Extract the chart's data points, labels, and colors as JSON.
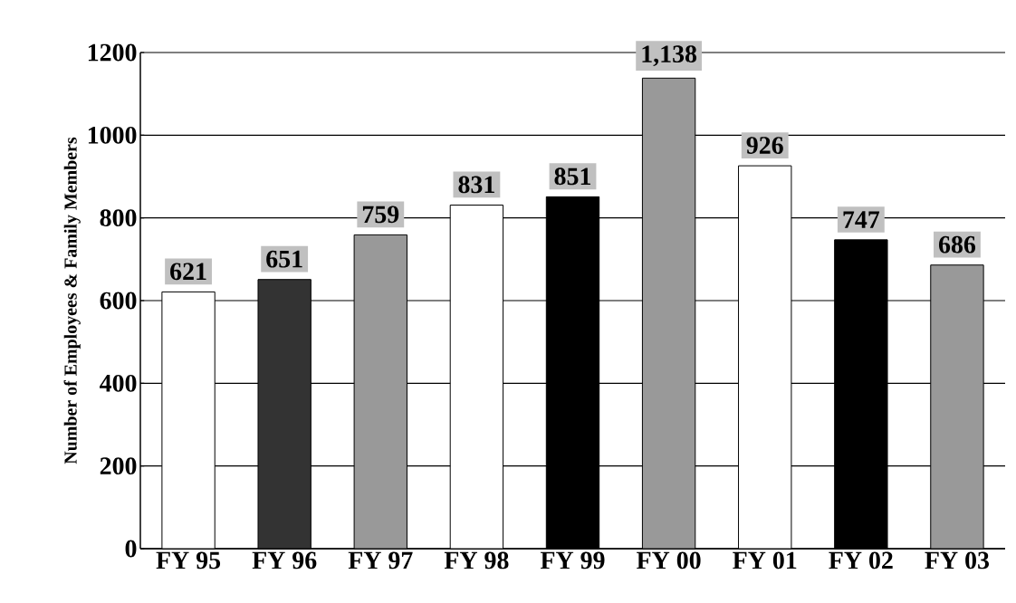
{
  "chart_data": {
    "type": "bar",
    "ylabel": "Number of Employees & Family Members",
    "categories": [
      "FY 95",
      "FY 96",
      "FY 97",
      "FY 98",
      "FY 99",
      "FY 00",
      "FY 01",
      "FY 02",
      "FY 03"
    ],
    "values": [
      621,
      651,
      759,
      831,
      851,
      1138,
      926,
      747,
      686
    ],
    "value_labels": [
      "621",
      "651",
      "759",
      "831",
      "851",
      "1,138",
      "926",
      "747",
      "686"
    ],
    "colors": [
      "#ffffff",
      "#333333",
      "#999999",
      "#ffffff",
      "#000000",
      "#999999",
      "#ffffff",
      "#000000",
      "#999999"
    ],
    "ylim": [
      0,
      1200
    ],
    "yticks": [
      0,
      200,
      400,
      600,
      800,
      1000,
      1200
    ],
    "grid": "y"
  }
}
